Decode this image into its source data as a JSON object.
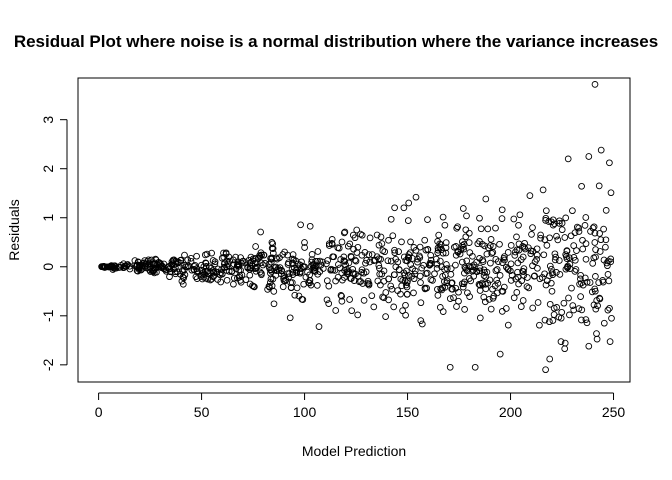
{
  "chart_data": {
    "type": "scatter",
    "title": "Residual Plot where noise is a normal distribution where the variance increases",
    "xlabel": "Model Prediction",
    "ylabel": "Residuals",
    "xlim": [
      -10,
      258
    ],
    "ylim": [
      -2.35,
      3.85
    ],
    "xticks": [
      0,
      50,
      100,
      150,
      200,
      250
    ],
    "yticks": [
      -2,
      -1,
      0,
      1,
      2,
      3
    ],
    "marker": "open-circle",
    "grid": false,
    "legend": "none",
    "n_points": 1000,
    "noise_model": {
      "mean": 0,
      "sd_per_unit_x": 0.0029
    },
    "x_range": [
      0,
      249
    ],
    "notable_points": [
      {
        "x": 241,
        "y": 3.72
      },
      {
        "x": 244,
        "y": 2.38
      },
      {
        "x": 248,
        "y": 2.12
      },
      {
        "x": 228,
        "y": 2.2
      },
      {
        "x": 238,
        "y": 2.25
      },
      {
        "x": 217,
        "y": -2.1
      },
      {
        "x": 219,
        "y": -1.88
      },
      {
        "x": 195,
        "y": -1.78
      },
      {
        "x": 238,
        "y": -1.62
      },
      {
        "x": 249,
        "y": -1.05
      },
      {
        "x": 107,
        "y": -1.22
      }
    ]
  }
}
